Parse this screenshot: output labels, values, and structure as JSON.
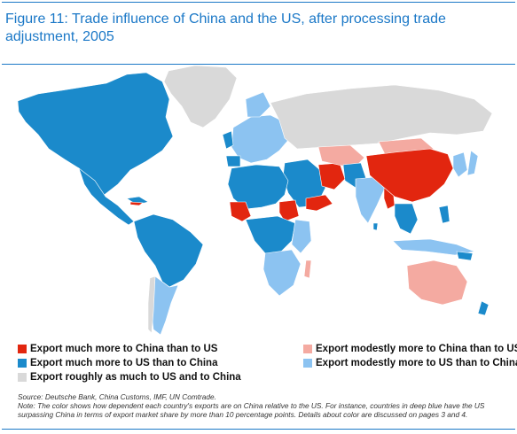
{
  "title": "Figure 11: Trade influence of China and the US, after processing trade adjustment, 2005",
  "colors": {
    "much_china": "#e2260f",
    "modest_china": "#f4aaa1",
    "much_us": "#1b8acb",
    "modest_us": "#8cc3f1",
    "roughly_equal": "#d9d9d9",
    "accent": "#1b78c7"
  },
  "legend": [
    {
      "label": "Export much more to China than to US",
      "color_key": "much_china"
    },
    {
      "label": "Export modestly more to China than to US",
      "color_key": "modest_china"
    },
    {
      "label": "Export much more to US than to China",
      "color_key": "much_us"
    },
    {
      "label": "Export modestly more to US than to China",
      "color_key": "modest_us"
    },
    {
      "label": "Export roughly as much to US and to China",
      "color_key": "roughly_equal"
    }
  ],
  "source": "Source: Deutsche Bank, China Customs, IMF, UN Comtrade.",
  "note": "Note: The color shows how dependent each country's exports are on China relative to the US. For instance, countries in deep blue have the US surpassing China in terms of export market share by more than 10 percentage points. Details about color are discussed on pages 3 and 4."
}
